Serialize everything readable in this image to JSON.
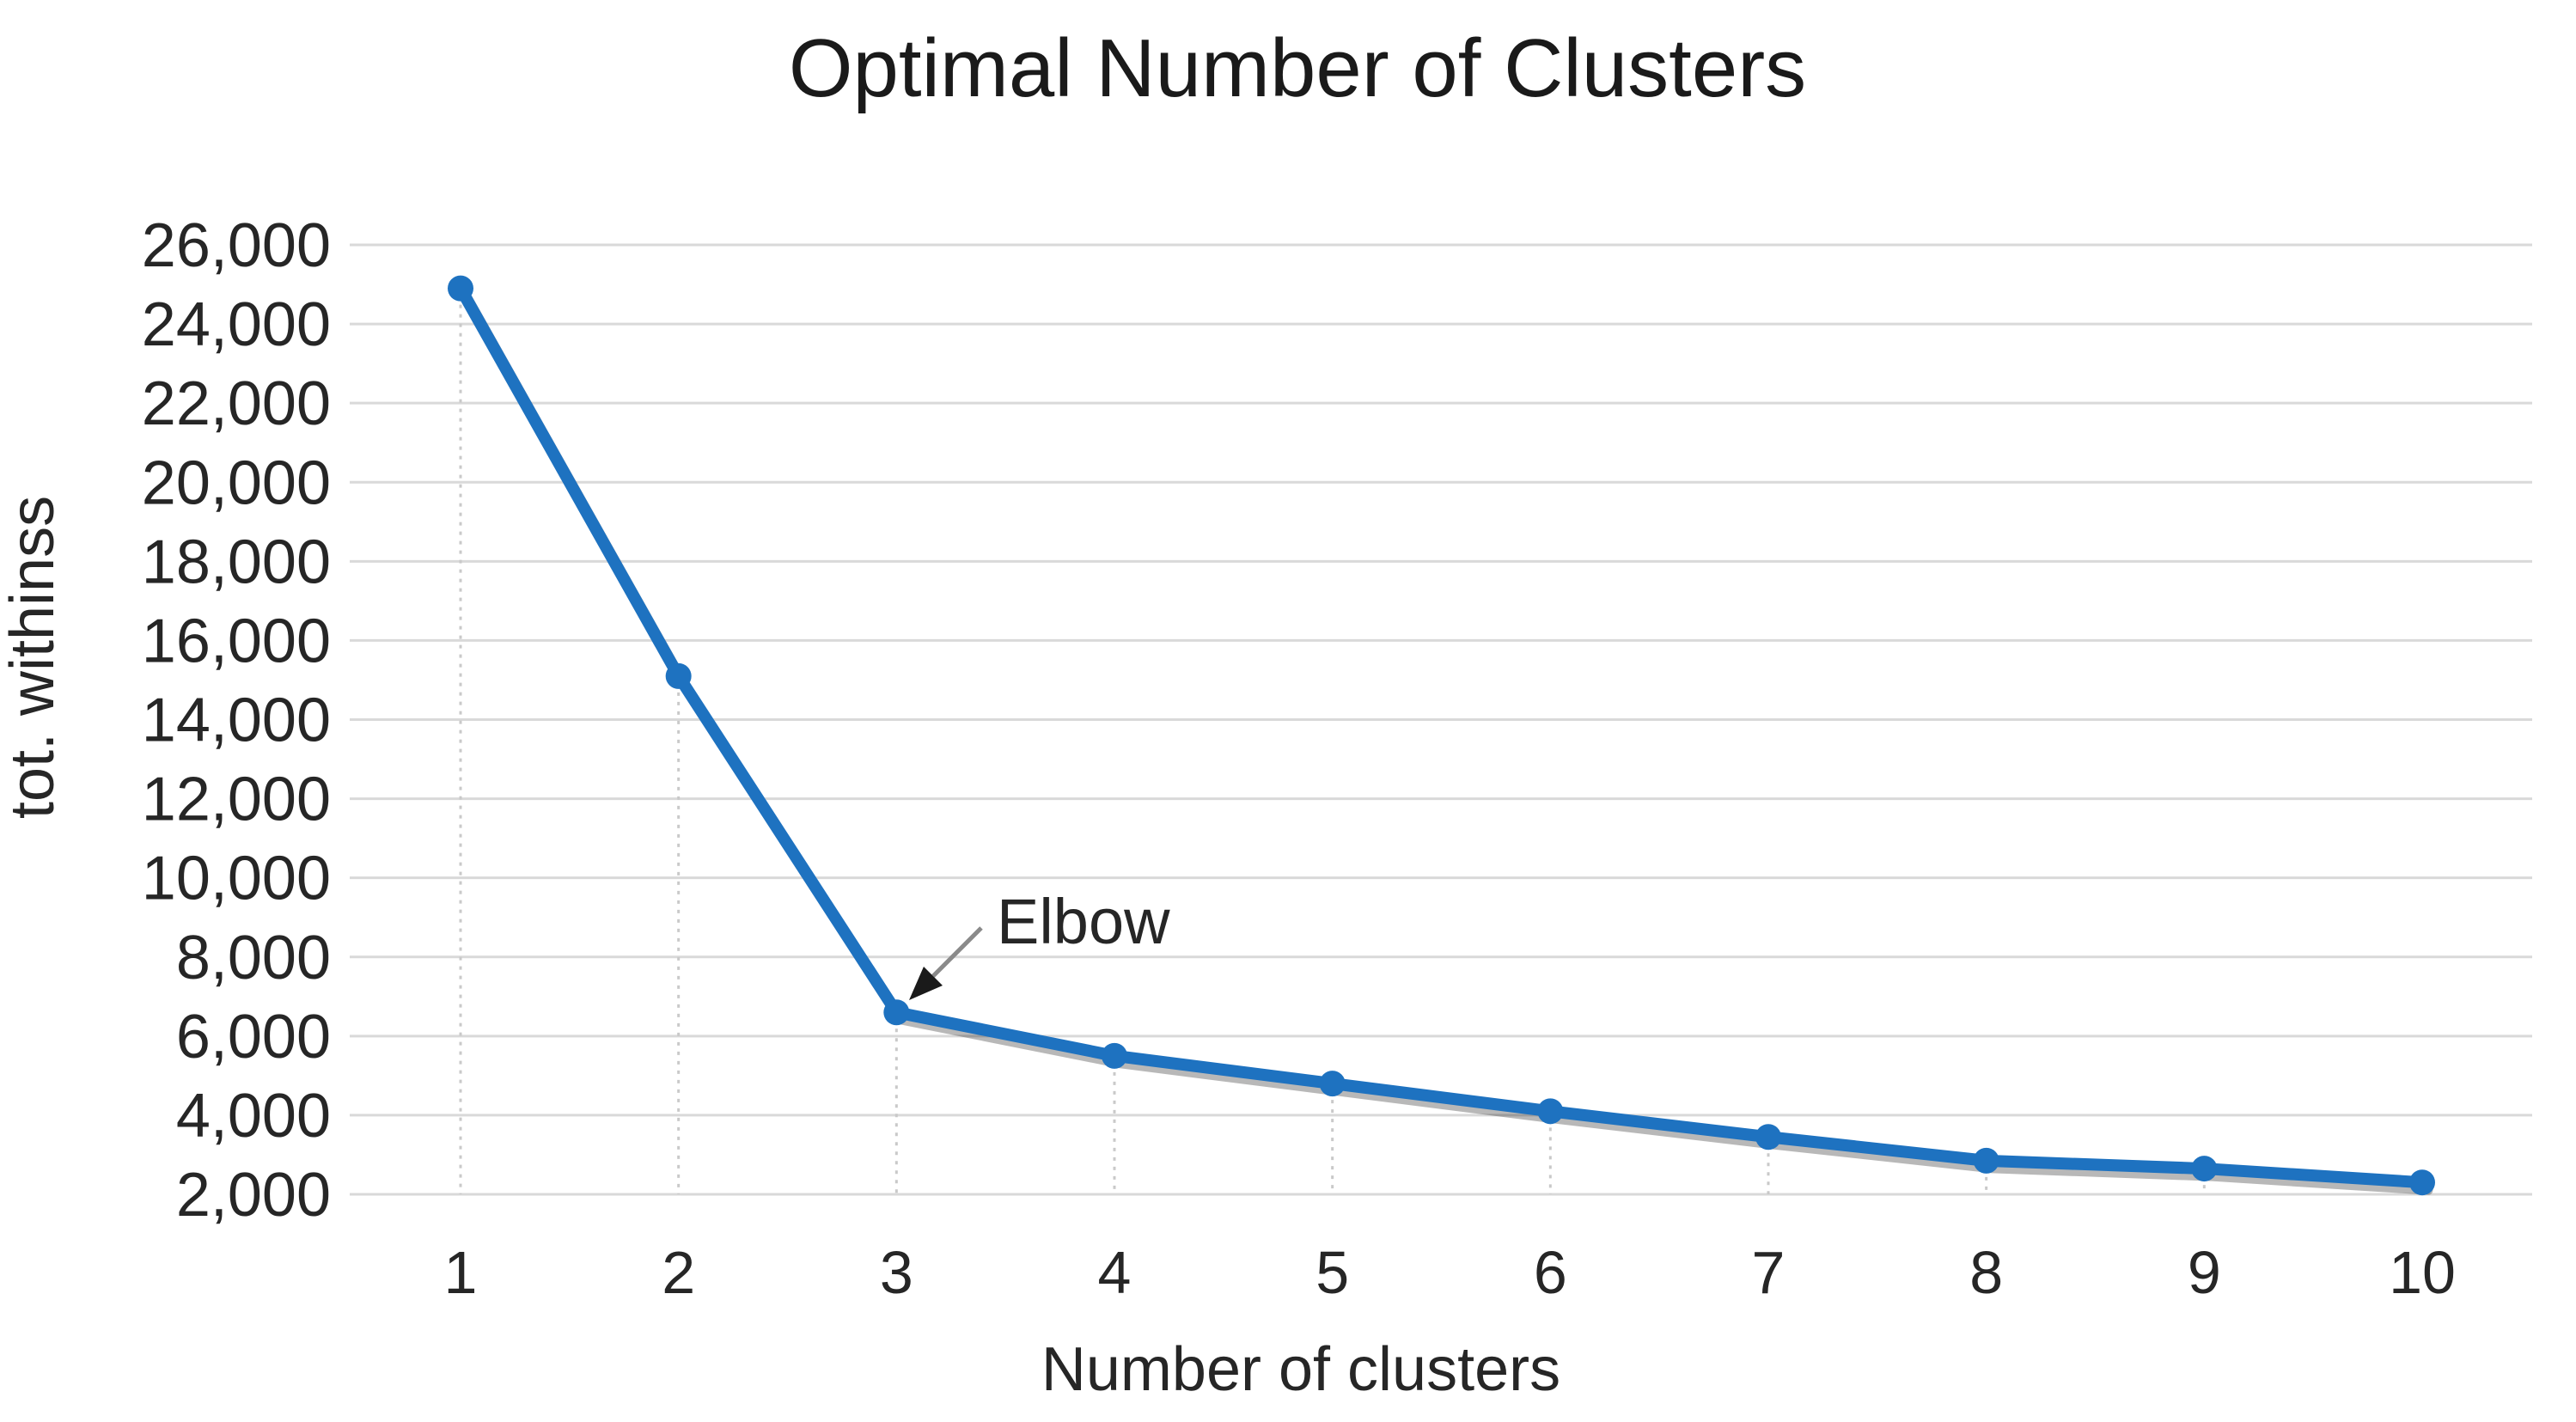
{
  "chart_data": {
    "type": "line",
    "title": "Optimal Number of Clusters",
    "xlabel": "Number of clusters",
    "ylabel": "tot. withinss",
    "x": [
      1,
      2,
      3,
      4,
      5,
      6,
      7,
      8,
      9,
      10
    ],
    "x_tick_labels": [
      "1",
      "2",
      "3",
      "4",
      "5",
      "6",
      "7",
      "8",
      "9",
      "10"
    ],
    "y_tick_values": [
      26000,
      24000,
      22000,
      20000,
      18000,
      16000,
      14000,
      12000,
      10000,
      8000,
      6000,
      4000,
      2000
    ],
    "y_tick_labels": [
      "26,000",
      "24,000",
      "22,000",
      "20,000",
      "18,000",
      "16,000",
      "14,000",
      "12,000",
      "10,000",
      "8,000",
      "6,000",
      "4,000",
      "2,000"
    ],
    "ylim": [
      2000,
      26000
    ],
    "grid": "horizontal solid gridlines; dotted vertical droplines under each data point",
    "legend": "none",
    "series": [
      {
        "name": "tot. withinss",
        "values": [
          24900,
          15100,
          6600,
          5500,
          4800,
          4100,
          3450,
          2850,
          2650,
          2300
        ]
      }
    ],
    "annotation": {
      "label": "Elbow",
      "points_to_x": 3,
      "points_to_value": 6600
    },
    "colors": {
      "line": "#1e72c0",
      "marker": "#1e72c0",
      "gridline": "#d9d9d9",
      "dropline": "#c9c9c9",
      "tick_text": "#262626",
      "title_text": "#1a1a1a",
      "arrow_line": "#8a8a8a",
      "arrowhead": "#1a1a1a",
      "background": "#ffffff"
    }
  }
}
